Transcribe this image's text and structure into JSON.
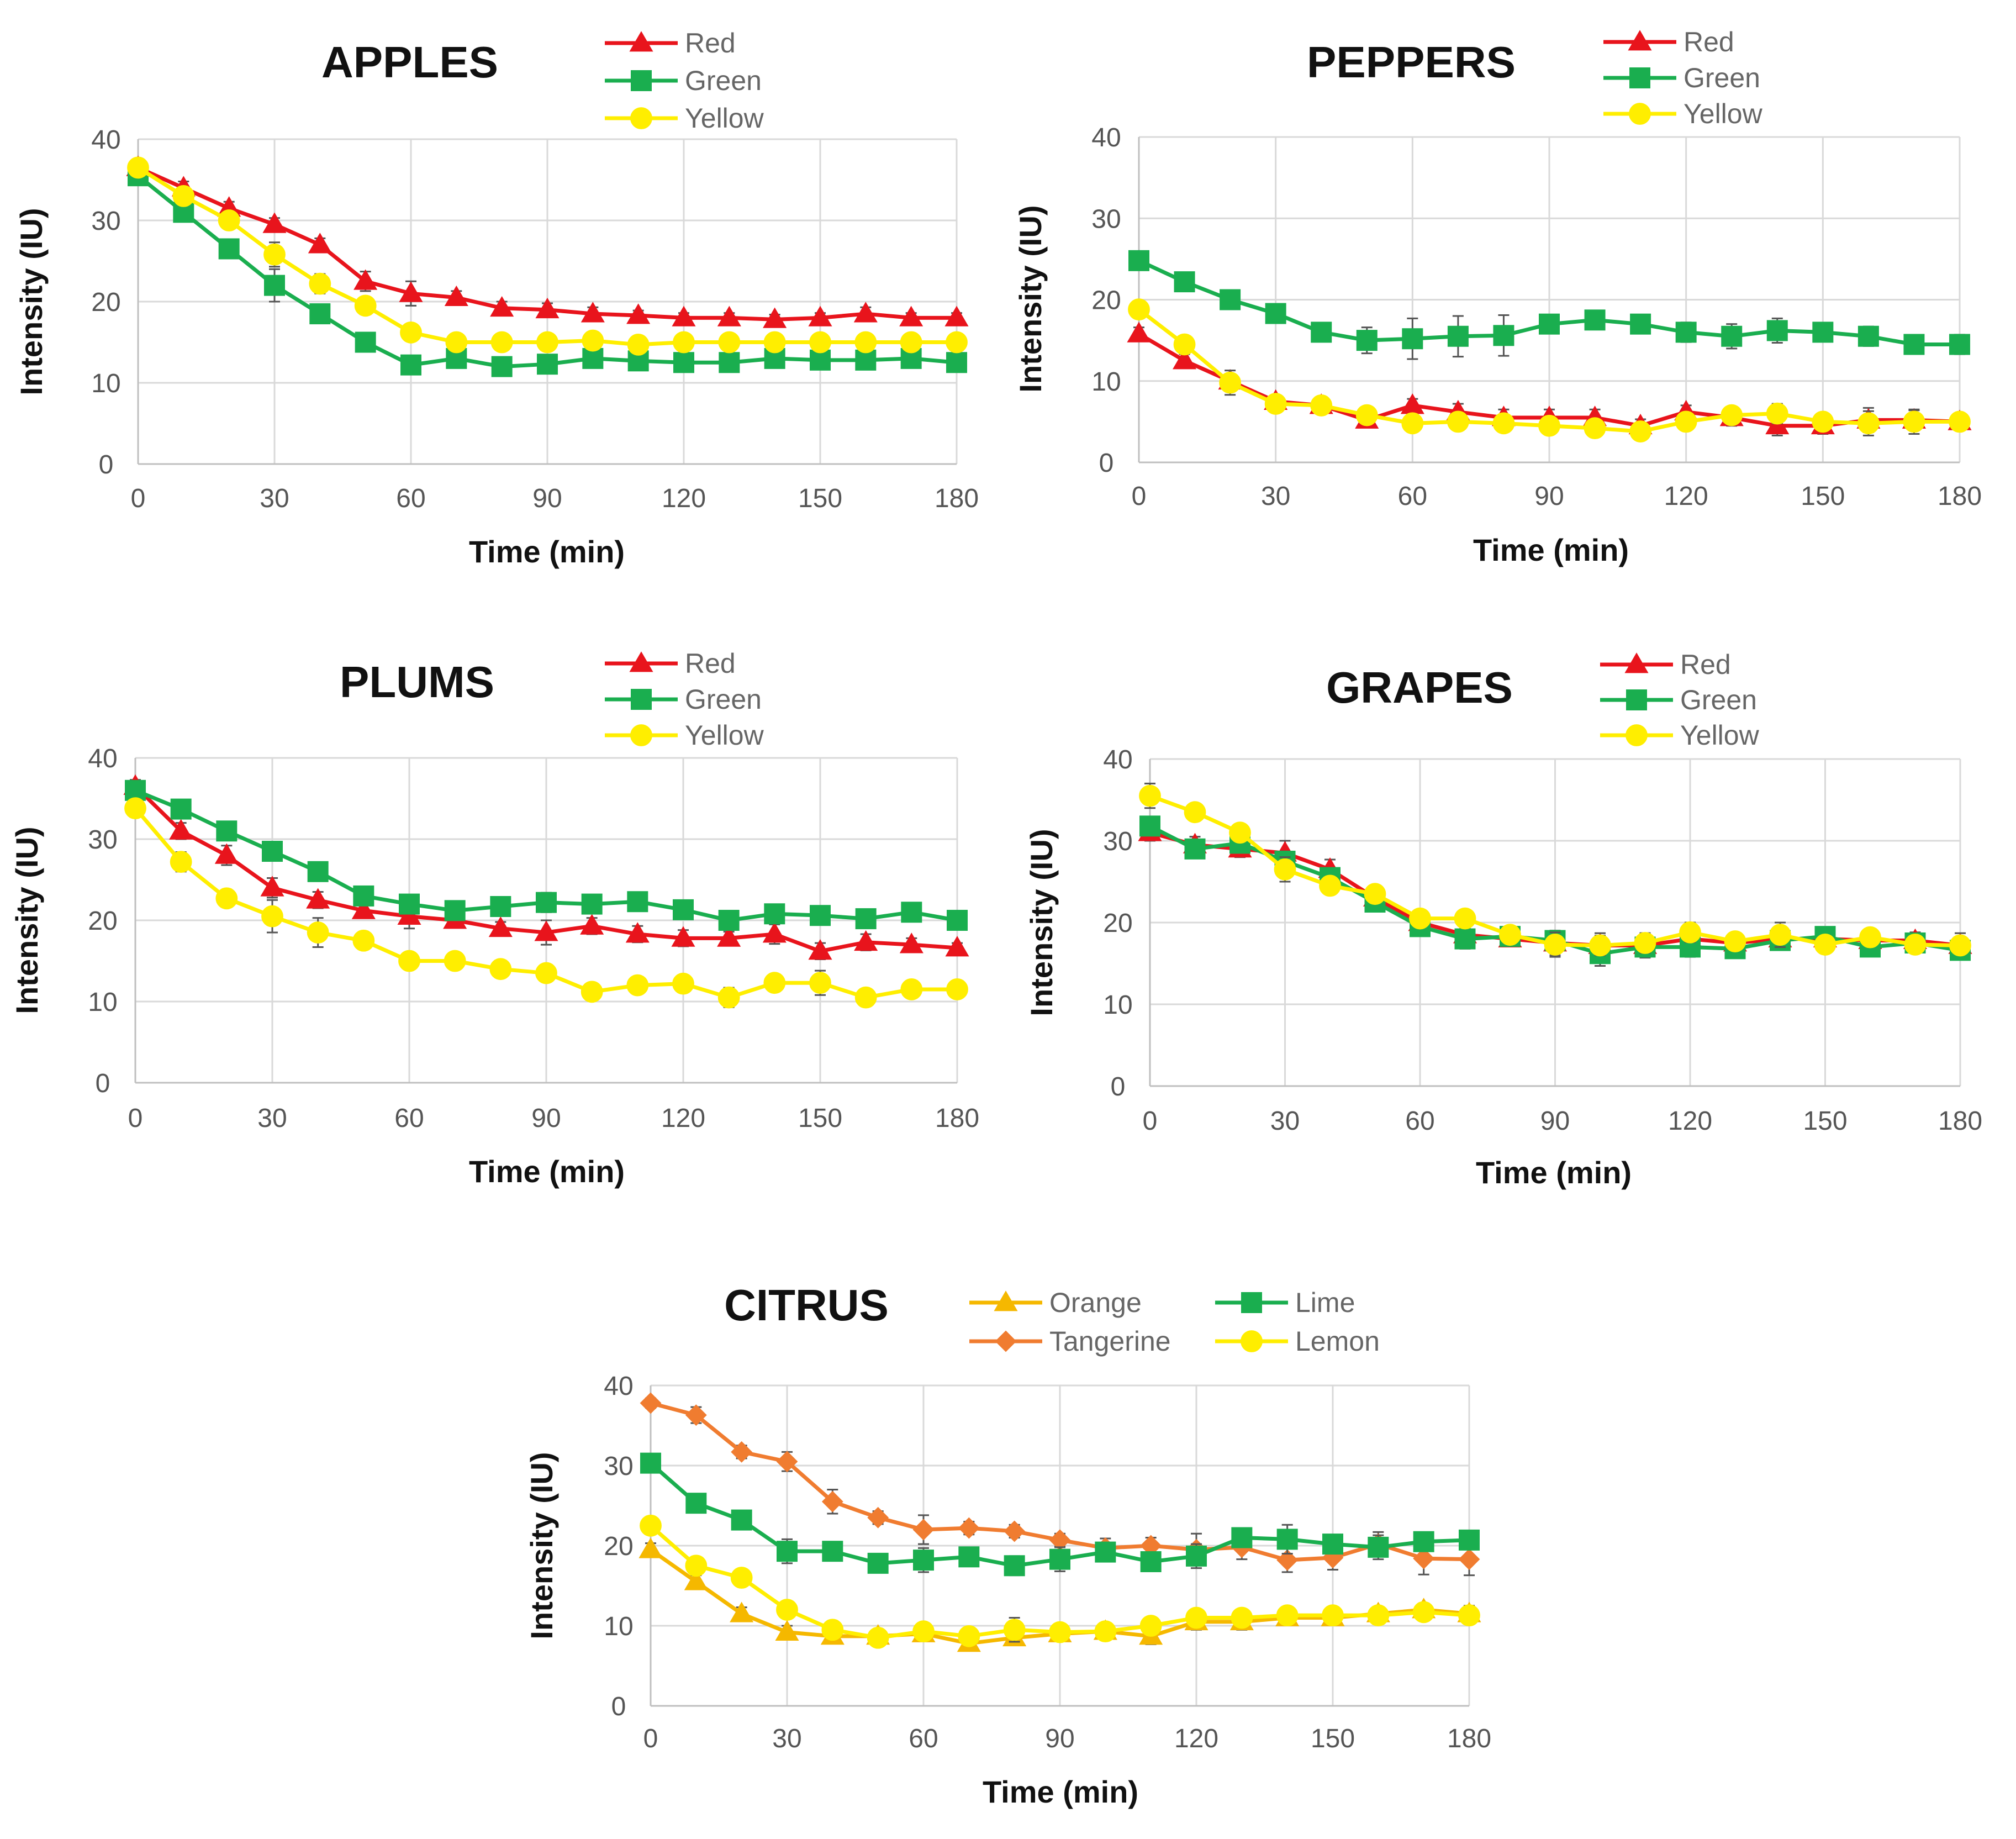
{
  "chart_data": [
    {
      "type": "line",
      "title": "APPLES",
      "xlabel": "Time (min)",
      "ylabel": "Intensity (IU)",
      "xlim": [
        0,
        180
      ],
      "ylim": [
        0,
        40
      ],
      "xticks": [
        "0",
        "30",
        "60",
        "90",
        "120",
        "150",
        "180"
      ],
      "yticks": [
        "0",
        "10",
        "20",
        "30",
        "40"
      ],
      "grid": true,
      "legend": "top-right",
      "x": [
        0,
        10,
        20,
        30,
        40,
        50,
        60,
        70,
        80,
        90,
        100,
        110,
        120,
        130,
        140,
        150,
        160,
        170,
        180
      ],
      "series": [
        {
          "name": "Red",
          "color": "#e8141c",
          "marker": "triangle",
          "values": [
            36.5,
            34,
            31.5,
            29.5,
            27,
            22.5,
            21,
            20.5,
            19.2,
            19,
            18.5,
            18.3,
            18,
            18,
            17.8,
            18,
            18.5,
            18,
            18
          ],
          "errors": [
            1,
            0.8,
            0.8,
            0.8,
            0.8,
            1.2,
            1.5,
            0.8,
            0.8,
            0.8,
            0.8,
            0.6,
            0.6,
            0.6,
            0.6,
            0.6,
            0.8,
            0.6,
            0.6
          ]
        },
        {
          "name": "Green",
          "color": "#1aae4f",
          "marker": "square",
          "values": [
            35.5,
            31,
            26.5,
            22,
            18.5,
            15,
            12.2,
            13,
            12,
            12.3,
            13,
            12.7,
            12.5,
            12.5,
            13,
            12.8,
            12.8,
            13,
            12.5
          ],
          "errors": [
            0.6,
            0.6,
            0.6,
            2,
            0.8,
            0.8,
            0.8,
            0.6,
            0.6,
            0.6,
            0.6,
            0.6,
            0.6,
            0.6,
            0.6,
            0.6,
            0.6,
            0.6,
            0.6
          ]
        },
        {
          "name": "Yellow",
          "color": "#ffee00",
          "marker": "circle",
          "values": [
            36.5,
            33,
            30,
            25.8,
            22.2,
            19.5,
            16.2,
            15,
            15,
            15,
            15.2,
            14.7,
            15,
            15,
            15,
            15,
            15,
            15,
            15
          ],
          "errors": [
            0.8,
            0.8,
            0.8,
            1.5,
            1.2,
            1,
            1,
            0.8,
            0.6,
            0.6,
            0.6,
            0.6,
            0.6,
            0.6,
            0.6,
            0.6,
            0.6,
            0.6,
            0.6
          ]
        }
      ]
    },
    {
      "type": "line",
      "title": "PEPPERS",
      "xlabel": "Time (min)",
      "ylabel": "Intensity (IU)",
      "xlim": [
        0,
        180
      ],
      "ylim": [
        0,
        40
      ],
      "xticks": [
        "0",
        "30",
        "60",
        "90",
        "120",
        "150",
        "180"
      ],
      "yticks": [
        "0",
        "10",
        "20",
        "30",
        "40"
      ],
      "grid": true,
      "legend": "top-right",
      "x": [
        0,
        10,
        20,
        30,
        40,
        50,
        60,
        70,
        80,
        90,
        100,
        110,
        120,
        130,
        140,
        150,
        160,
        170,
        180
      ],
      "series": [
        {
          "name": "Red",
          "color": "#e8141c",
          "marker": "triangle",
          "values": [
            15.8,
            12.5,
            10,
            7.5,
            7,
            5.2,
            7,
            6.2,
            5.5,
            5.5,
            5.5,
            4.5,
            6.2,
            5.5,
            4.5,
            4.5,
            5.2,
            5.2,
            5
          ],
          "errors": [
            0.8,
            0.8,
            0.8,
            0.6,
            0.6,
            0.8,
            0.8,
            1,
            1,
            1,
            1,
            0.8,
            0.8,
            1,
            1.2,
            1,
            1.5,
            1.2,
            0.8
          ]
        },
        {
          "name": "Green",
          "color": "#1aae4f",
          "marker": "square",
          "values": [
            24.8,
            22.2,
            20,
            18.3,
            16,
            15,
            15.2,
            15.5,
            15.6,
            17,
            17.5,
            17,
            16,
            15.5,
            16.2,
            16,
            15.5,
            14.5,
            14.5
          ],
          "errors": [
            0.8,
            0.6,
            0.6,
            0.6,
            1,
            1.6,
            2.5,
            2.5,
            2.5,
            0.8,
            0.8,
            0.8,
            1.2,
            1.5,
            1.5,
            0.8,
            1.2,
            0.8,
            1.2
          ]
        },
        {
          "name": "Yellow",
          "color": "#ffee00",
          "marker": "circle",
          "values": [
            18.8,
            14.5,
            9.8,
            7.2,
            7,
            5.8,
            4.8,
            5,
            4.8,
            4.5,
            4.2,
            3.8,
            5,
            5.8,
            6,
            5,
            4.8,
            5,
            5
          ],
          "errors": [
            1,
            0.8,
            1.5,
            0.6,
            0.6,
            0.8,
            0.8,
            1,
            1,
            1,
            1,
            0.8,
            1,
            0.8,
            1.2,
            1,
            1.5,
            1.5,
            0.8
          ]
        }
      ]
    },
    {
      "type": "line",
      "title": "PLUMS",
      "xlabel": "Time (min)",
      "ylabel": "Intensity (IU)",
      "xlim": [
        0,
        180
      ],
      "ylim": [
        0,
        40
      ],
      "xticks": [
        "0",
        "30",
        "60",
        "90",
        "120",
        "150",
        "180"
      ],
      "yticks": [
        "0",
        "10",
        "20",
        "30",
        "40"
      ],
      "grid": true,
      "legend": "top-right",
      "x": [
        0,
        10,
        20,
        30,
        40,
        50,
        60,
        70,
        80,
        90,
        100,
        110,
        120,
        130,
        140,
        150,
        160,
        170,
        180
      ],
      "series": [
        {
          "name": "Red",
          "color": "#e8141c",
          "marker": "triangle",
          "values": [
            36.5,
            31,
            28,
            24,
            22.5,
            21.2,
            20.5,
            20,
            19,
            18.5,
            19.3,
            18.3,
            17.8,
            17.8,
            18.3,
            16.2,
            17.3,
            17,
            16.6
          ],
          "errors": [
            0.8,
            1,
            1.2,
            1.2,
            1,
            0.8,
            1.5,
            0.8,
            0.8,
            1.5,
            1,
            1,
            1,
            0.8,
            1.2,
            1,
            1,
            0.8,
            0.6
          ]
        },
        {
          "name": "Green",
          "color": "#1aae4f",
          "marker": "square",
          "values": [
            36,
            33.7,
            31,
            28.5,
            26,
            23,
            22,
            21.2,
            21.7,
            22.2,
            22,
            22.3,
            21.3,
            20,
            20.8,
            20.6,
            20.2,
            21,
            20
          ],
          "errors": [
            0.8,
            0.6,
            0.6,
            0.6,
            0.6,
            0.6,
            0.8,
            0.6,
            0.8,
            1.2,
            0.8,
            0.8,
            0.8,
            0.6,
            0.8,
            0.8,
            0.8,
            0.6,
            0.6
          ]
        },
        {
          "name": "Yellow",
          "color": "#ffee00",
          "marker": "circle",
          "values": [
            33.8,
            27.2,
            22.7,
            20.5,
            18.5,
            17.5,
            15,
            15,
            14,
            13.5,
            11.2,
            12,
            12.2,
            10.5,
            12.3,
            12.3,
            10.5,
            11.5,
            11.5
          ],
          "errors": [
            0.8,
            1.2,
            0.8,
            2,
            1.8,
            0.8,
            0.8,
            0.8,
            0.8,
            1,
            1,
            0.8,
            0.8,
            1.2,
            0.8,
            1.5,
            1,
            0.8,
            0.8
          ]
        }
      ]
    },
    {
      "type": "line",
      "title": "GRAPES",
      "xlabel": "Time (min)",
      "ylabel": "Intensity (IU)",
      "xlim": [
        0,
        180
      ],
      "ylim": [
        0,
        40
      ],
      "xticks": [
        "0",
        "30",
        "60",
        "90",
        "120",
        "150",
        "180"
      ],
      "yticks": [
        "0",
        "10",
        "20",
        "30",
        "40"
      ],
      "grid": true,
      "legend": "top-right",
      "x": [
        0,
        10,
        20,
        30,
        40,
        50,
        60,
        70,
        80,
        90,
        100,
        110,
        120,
        130,
        140,
        150,
        160,
        170,
        180
      ],
      "series": [
        {
          "name": "Red",
          "color": "#e8141c",
          "marker": "triangle",
          "values": [
            31,
            29.5,
            29,
            28.5,
            26.5,
            23,
            20,
            18.5,
            18,
            17.5,
            17.2,
            17.2,
            18,
            17.5,
            18,
            18,
            17.8,
            17.8,
            17.2
          ],
          "errors": [
            1,
            1,
            1,
            1.5,
            1.2,
            0.8,
            0.8,
            0.8,
            0.8,
            1.5,
            1.5,
            1.5,
            1.2,
            1,
            1.2,
            1,
            1,
            1,
            1.5
          ]
        },
        {
          "name": "Green",
          "color": "#1aae4f",
          "marker": "square",
          "values": [
            31.8,
            29,
            29.7,
            27.5,
            25.5,
            22.5,
            19.5,
            18,
            18.3,
            17.8,
            16.2,
            17,
            17,
            16.8,
            17.8,
            18.3,
            17,
            17.5,
            16.6
          ],
          "errors": [
            0.8,
            1,
            1,
            1.2,
            1,
            0.8,
            0.8,
            1.2,
            0.8,
            1.2,
            1.5,
            1.2,
            1.2,
            1,
            1,
            1,
            1,
            1,
            1
          ]
        },
        {
          "name": "Yellow",
          "color": "#ffee00",
          "marker": "circle",
          "values": [
            35.5,
            33.5,
            31,
            26.5,
            24.5,
            23.5,
            20.5,
            20.5,
            18.5,
            17.3,
            17.2,
            17.5,
            18.8,
            17.7,
            18.5,
            17.3,
            18.2,
            17.3,
            17.2
          ],
          "errors": [
            1.5,
            1,
            1,
            1.5,
            1,
            0.8,
            0.8,
            0.8,
            0.8,
            1.5,
            1.2,
            1.2,
            1.2,
            1,
            1.5,
            1,
            1,
            1,
            1
          ]
        }
      ]
    },
    {
      "type": "line",
      "title": "CITRUS",
      "xlabel": "Time (min)",
      "ylabel": "Intensity (IU)",
      "xlim": [
        0,
        180
      ],
      "ylim": [
        0,
        40
      ],
      "xticks": [
        "0",
        "30",
        "60",
        "90",
        "120",
        "150",
        "180"
      ],
      "yticks": [
        "0",
        "10",
        "20",
        "30",
        "40"
      ],
      "grid": true,
      "legend": "top-right",
      "x": [
        0,
        10,
        20,
        30,
        40,
        50,
        60,
        70,
        80,
        90,
        100,
        110,
        120,
        130,
        140,
        150,
        160,
        170,
        180
      ],
      "series": [
        {
          "name": "Orange",
          "color": "#f5b800",
          "marker": "triangle",
          "values": [
            19.5,
            15.5,
            11.5,
            9.2,
            8.7,
            8.7,
            9,
            7.8,
            8.5,
            9,
            9.3,
            8.7,
            10.5,
            10.5,
            11,
            11,
            11.5,
            12,
            11.5
          ],
          "errors": [
            0.8,
            0.8,
            0.8,
            0.8,
            0.6,
            0.6,
            0.6,
            0.8,
            0.8,
            0.8,
            0.8,
            1,
            1,
            1,
            0.8,
            0.8,
            0.8,
            0.8,
            1
          ]
        },
        {
          "name": "Tangerine",
          "color": "#f07c30",
          "marker": "diamond",
          "values": [
            37.8,
            36.3,
            31.7,
            30.5,
            25.5,
            23.5,
            22,
            22.2,
            21.8,
            20.7,
            19.7,
            20,
            19.5,
            19.8,
            18.2,
            18.5,
            20.2,
            18.4,
            18.3
          ],
          "errors": [
            0.6,
            1,
            0.8,
            1.2,
            1.5,
            0.8,
            1.8,
            0.8,
            0.8,
            0.8,
            1.2,
            1,
            2,
            1.5,
            1.5,
            1.5,
            1.5,
            2,
            2
          ]
        },
        {
          "name": "Lime",
          "color": "#1aae4f",
          "marker": "square",
          "values": [
            30.3,
            25.3,
            23.2,
            19.3,
            19.3,
            17.8,
            18.2,
            18.6,
            17.5,
            18.3,
            19.2,
            18,
            18.7,
            21,
            20.8,
            20.2,
            19.8,
            20.5,
            20.7
          ],
          "errors": [
            0.6,
            0.6,
            0.6,
            1.5,
            0.8,
            0.8,
            1.5,
            0.8,
            1.2,
            1.5,
            1,
            0.8,
            1.5,
            1.2,
            1.8,
            0.8,
            1.5,
            0.8,
            1
          ]
        },
        {
          "name": "Lemon",
          "color": "#ffee00",
          "marker": "circle",
          "values": [
            22.5,
            17.5,
            16,
            12,
            9.5,
            8.5,
            9.3,
            8.7,
            9.5,
            9.2,
            9.3,
            10,
            11,
            11,
            11.3,
            11.3,
            11.3,
            11.7,
            11.3
          ],
          "errors": [
            0.8,
            0.8,
            0.6,
            1,
            0.8,
            0.8,
            0.8,
            0.8,
            1.5,
            1,
            1,
            0.8,
            1,
            1,
            0.8,
            0.8,
            0.8,
            0.8,
            0.8
          ]
        }
      ]
    }
  ]
}
